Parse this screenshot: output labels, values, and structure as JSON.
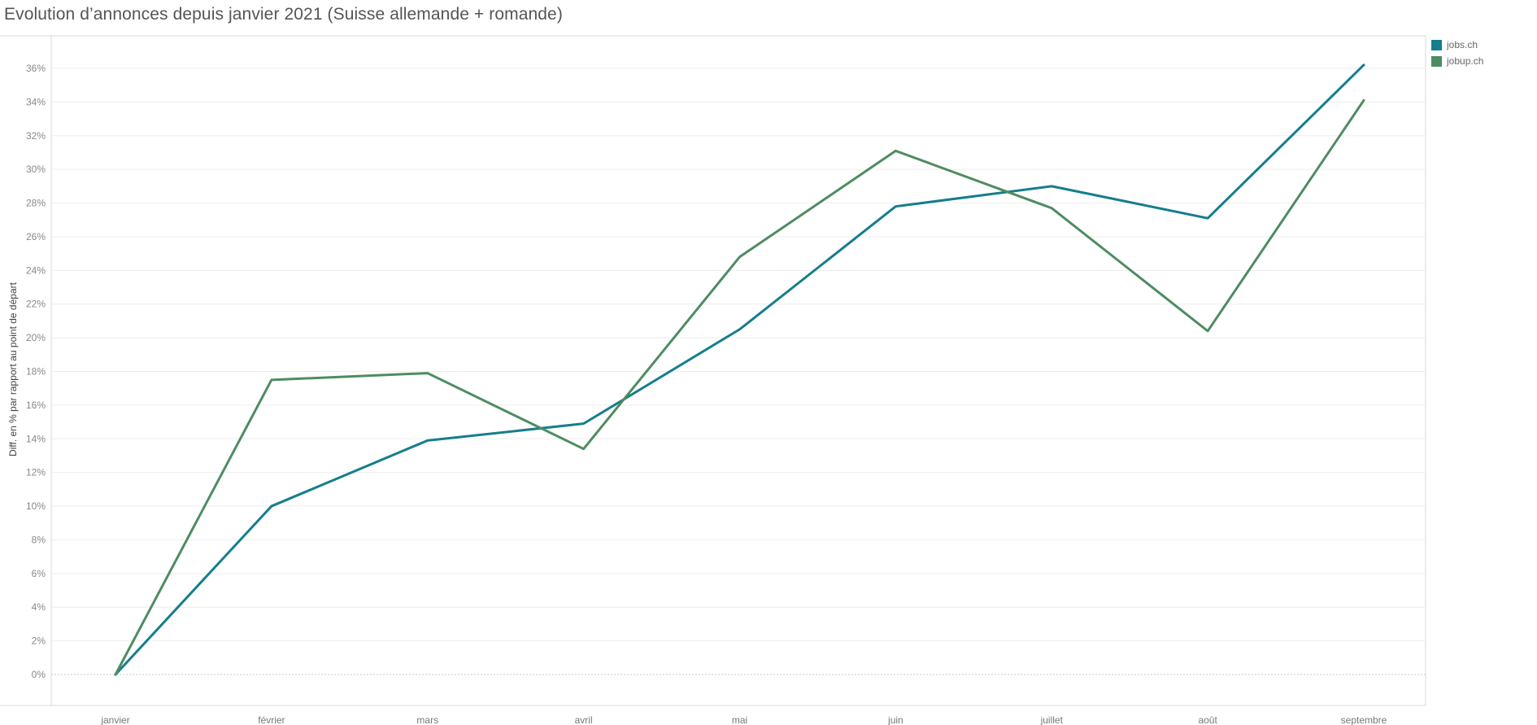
{
  "colors": {
    "jobs_ch": "#157E8C",
    "jobup_ch": "#4E8C61"
  },
  "chart_data": {
    "type": "line",
    "title": "Evolution d’annonces depuis janvier 2021 (Suisse allemande + romande)",
    "xlabel": "",
    "ylabel": "Diff. en % par rapport au point de départ",
    "categories": [
      "janvier",
      "février",
      "mars",
      "avril",
      "mai",
      "juin",
      "juillet",
      "août",
      "septembre"
    ],
    "ylim": [
      0,
      36
    ],
    "yticks": [
      "0%",
      "2%",
      "4%",
      "6%",
      "8%",
      "10%",
      "12%",
      "14%",
      "16%",
      "18%",
      "20%",
      "22%",
      "24%",
      "26%",
      "28%",
      "30%",
      "32%",
      "34%",
      "36%"
    ],
    "grid": true,
    "legend_position": "top-right",
    "series": [
      {
        "name": "jobs.ch",
        "color": "#157E8C",
        "values": [
          0,
          10.0,
          13.9,
          14.9,
          20.5,
          27.8,
          29.0,
          27.1,
          36.2
        ]
      },
      {
        "name": "jobup.ch",
        "color": "#4E8C61",
        "values": [
          0,
          17.5,
          17.9,
          13.4,
          24.8,
          31.1,
          27.7,
          20.4,
          34.1
        ]
      }
    ]
  }
}
